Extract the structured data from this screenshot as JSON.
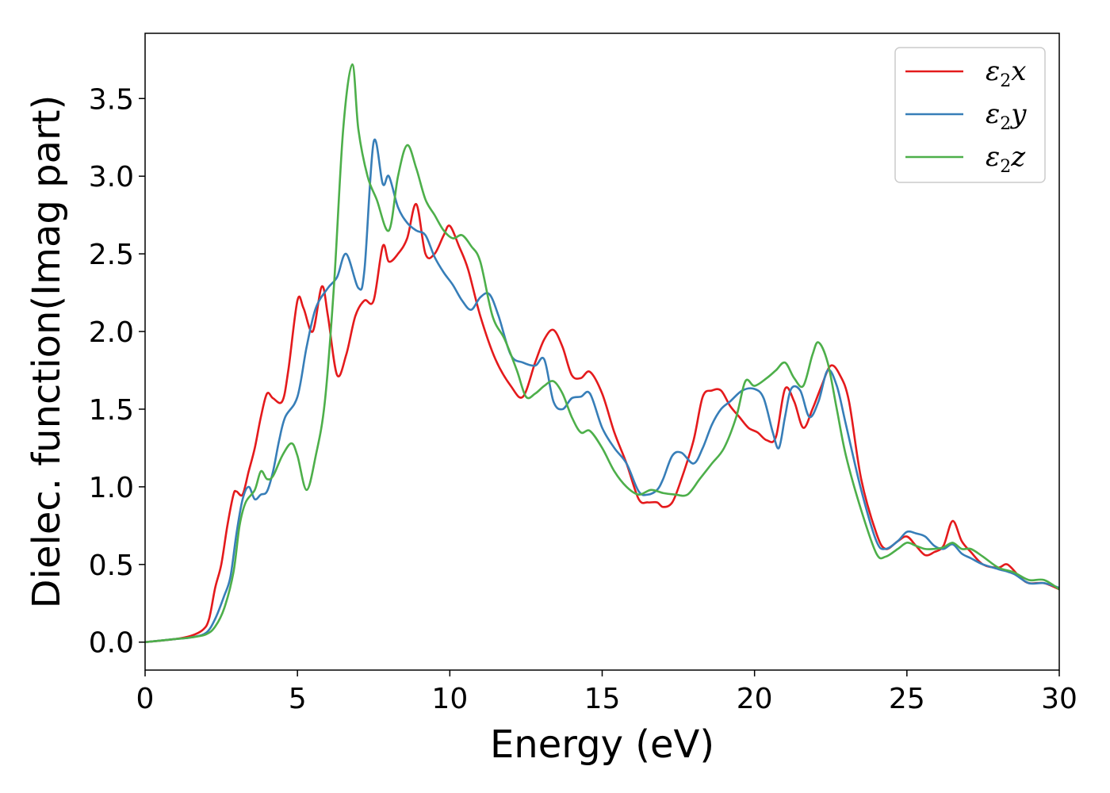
{
  "chart_data": {
    "type": "line",
    "title": "",
    "xlabel": "Energy (eV)",
    "ylabel": "Dielec. function(Imag part)",
    "xlim": [
      0,
      30
    ],
    "ylim": [
      -0.18,
      3.92
    ],
    "xticks": [
      0,
      5,
      10,
      15,
      20,
      25,
      30
    ],
    "yticks": [
      0.0,
      0.5,
      1.0,
      1.5,
      2.0,
      2.5,
      3.0,
      3.5
    ],
    "xtick_labels": [
      "0",
      "5",
      "10",
      "15",
      "20",
      "25",
      "30"
    ],
    "ytick_labels": [
      "0.0",
      "0.5",
      "1.0",
      "1.5",
      "2.0",
      "2.5",
      "3.0",
      "3.5"
    ],
    "grid": false,
    "legend_position": "top-right",
    "series": [
      {
        "name": "ε2x",
        "legend_main": "ε",
        "legend_sub": "2",
        "legend_tail": "x",
        "color": "#e41a1c",
        "x": [
          0,
          1,
          1.5,
          1.9,
          2.1,
          2.3,
          2.5,
          2.7,
          2.9,
          3.0,
          3.2,
          3.4,
          3.6,
          3.8,
          4.0,
          4.2,
          4.5,
          4.7,
          5.0,
          5.2,
          5.5,
          5.8,
          6.0,
          6.3,
          6.6,
          6.9,
          7.2,
          7.5,
          7.8,
          8.0,
          8.3,
          8.6,
          8.9,
          9.2,
          9.5,
          9.8,
          10.0,
          10.3,
          10.6,
          11.0,
          11.5,
          12.0,
          12.4,
          12.8,
          13.1,
          13.4,
          13.7,
          14.0,
          14.3,
          14.6,
          15.0,
          15.4,
          15.8,
          16.2,
          16.5,
          16.8,
          17.0,
          17.3,
          17.6,
          18.0,
          18.3,
          18.6,
          18.9,
          19.2,
          19.5,
          19.8,
          20.1,
          20.4,
          20.7,
          21.0,
          21.3,
          21.6,
          21.9,
          22.2,
          22.5,
          22.8,
          23.1,
          23.5,
          24.0,
          24.3,
          24.7,
          25.0,
          25.3,
          25.6,
          25.9,
          26.2,
          26.5,
          26.8,
          27.1,
          27.5,
          28.0,
          28.3,
          28.7,
          29.0,
          29.5,
          30.0
        ],
        "y": [
          0.0,
          0.02,
          0.04,
          0.08,
          0.15,
          0.35,
          0.5,
          0.75,
          0.95,
          0.97,
          0.95,
          1.1,
          1.25,
          1.45,
          1.6,
          1.57,
          1.55,
          1.75,
          2.2,
          2.15,
          2.0,
          2.29,
          2.1,
          1.72,
          1.85,
          2.1,
          2.2,
          2.2,
          2.55,
          2.45,
          2.5,
          2.6,
          2.82,
          2.5,
          2.5,
          2.62,
          2.68,
          2.55,
          2.4,
          2.1,
          1.82,
          1.65,
          1.58,
          1.8,
          1.95,
          2.01,
          1.9,
          1.72,
          1.7,
          1.74,
          1.6,
          1.35,
          1.15,
          0.92,
          0.9,
          0.9,
          0.87,
          0.9,
          1.05,
          1.3,
          1.58,
          1.62,
          1.62,
          1.52,
          1.45,
          1.38,
          1.35,
          1.3,
          1.32,
          1.63,
          1.55,
          1.38,
          1.5,
          1.65,
          1.78,
          1.72,
          1.55,
          1.05,
          0.7,
          0.6,
          0.65,
          0.68,
          0.62,
          0.56,
          0.58,
          0.62,
          0.78,
          0.65,
          0.58,
          0.5,
          0.48,
          0.5,
          0.42,
          0.38,
          0.38,
          0.34
        ]
      },
      {
        "name": "ε2y",
        "legend_main": "ε",
        "legend_sub": "2",
        "legend_tail": "y",
        "color": "#377eb8",
        "x": [
          0,
          1,
          1.5,
          2.0,
          2.3,
          2.6,
          2.8,
          3.0,
          3.2,
          3.4,
          3.6,
          3.8,
          4.0,
          4.2,
          4.4,
          4.6,
          5.0,
          5.3,
          5.6,
          6.0,
          6.3,
          6.6,
          7.0,
          7.2,
          7.5,
          7.8,
          8.0,
          8.3,
          8.6,
          8.9,
          9.2,
          9.5,
          9.8,
          10.1,
          10.4,
          10.7,
          11.0,
          11.3,
          11.6,
          12.0,
          12.4,
          12.8,
          13.1,
          13.4,
          13.7,
          14.0,
          14.3,
          14.6,
          15.0,
          15.4,
          15.8,
          16.2,
          16.5,
          16.8,
          17.0,
          17.3,
          17.6,
          18.0,
          18.3,
          18.6,
          18.9,
          19.2,
          19.6,
          20.0,
          20.3,
          20.6,
          20.8,
          21.0,
          21.2,
          21.5,
          21.8,
          22.1,
          22.4,
          22.7,
          23.0,
          23.5,
          24.0,
          24.3,
          24.7,
          25.0,
          25.3,
          25.6,
          25.9,
          26.2,
          26.5,
          26.8,
          27.1,
          27.5,
          28.0,
          28.5,
          29.0,
          29.5,
          30.0
        ],
        "y": [
          0.0,
          0.02,
          0.03,
          0.06,
          0.15,
          0.3,
          0.42,
          0.7,
          0.92,
          1.0,
          0.92,
          0.95,
          0.97,
          1.1,
          1.3,
          1.45,
          1.58,
          1.9,
          2.15,
          2.28,
          2.35,
          2.5,
          2.28,
          2.4,
          3.22,
          2.95,
          3.0,
          2.8,
          2.7,
          2.65,
          2.62,
          2.48,
          2.38,
          2.3,
          2.2,
          2.14,
          2.22,
          2.24,
          2.1,
          1.85,
          1.8,
          1.78,
          1.82,
          1.55,
          1.5,
          1.57,
          1.58,
          1.6,
          1.38,
          1.25,
          1.15,
          0.97,
          0.95,
          0.98,
          1.05,
          1.2,
          1.22,
          1.15,
          1.25,
          1.4,
          1.5,
          1.55,
          1.62,
          1.63,
          1.57,
          1.35,
          1.25,
          1.45,
          1.63,
          1.62,
          1.45,
          1.55,
          1.75,
          1.65,
          1.4,
          0.98,
          0.65,
          0.6,
          0.65,
          0.71,
          0.7,
          0.68,
          0.62,
          0.6,
          0.63,
          0.57,
          0.54,
          0.5,
          0.47,
          0.44,
          0.38,
          0.38,
          0.35
        ]
      },
      {
        "name": "ε2z",
        "legend_main": "ε",
        "legend_sub": "2",
        "legend_tail": "z",
        "color": "#4daf4a",
        "x": [
          0,
          1,
          1.5,
          2.0,
          2.3,
          2.6,
          2.9,
          3.1,
          3.3,
          3.6,
          3.8,
          4.0,
          4.2,
          4.5,
          4.8,
          5.0,
          5.3,
          5.6,
          5.9,
          6.2,
          6.5,
          6.8,
          7.0,
          7.3,
          7.6,
          8.0,
          8.3,
          8.6,
          8.9,
          9.2,
          9.5,
          9.8,
          10.1,
          10.4,
          10.7,
          11.0,
          11.4,
          11.8,
          12.2,
          12.5,
          12.8,
          13.1,
          13.4,
          13.7,
          14.0,
          14.3,
          14.6,
          15.0,
          15.4,
          15.8,
          16.2,
          16.6,
          17.0,
          17.4,
          17.8,
          18.2,
          18.6,
          19.0,
          19.4,
          19.7,
          20.0,
          20.4,
          20.7,
          21.0,
          21.3,
          21.6,
          21.9,
          22.1,
          22.4,
          22.7,
          23.0,
          23.5,
          24.0,
          24.3,
          24.7,
          25.0,
          25.3,
          25.6,
          25.9,
          26.2,
          26.5,
          26.8,
          27.1,
          27.5,
          28.0,
          28.5,
          29.0,
          29.5,
          30.0
        ],
        "y": [
          0.0,
          0.02,
          0.03,
          0.05,
          0.1,
          0.22,
          0.45,
          0.75,
          0.9,
          0.98,
          1.1,
          1.05,
          1.07,
          1.2,
          1.28,
          1.2,
          0.98,
          1.2,
          1.55,
          2.3,
          3.3,
          3.72,
          3.3,
          3.0,
          2.85,
          2.65,
          3.0,
          3.2,
          3.05,
          2.85,
          2.75,
          2.65,
          2.6,
          2.62,
          2.55,
          2.45,
          2.1,
          1.95,
          1.75,
          1.58,
          1.6,
          1.65,
          1.68,
          1.6,
          1.45,
          1.35,
          1.36,
          1.25,
          1.1,
          1.0,
          0.95,
          0.98,
          0.96,
          0.95,
          0.95,
          1.05,
          1.15,
          1.25,
          1.45,
          1.68,
          1.65,
          1.7,
          1.75,
          1.8,
          1.7,
          1.65,
          1.85,
          1.93,
          1.8,
          1.5,
          1.2,
          0.85,
          0.57,
          0.55,
          0.6,
          0.64,
          0.62,
          0.6,
          0.6,
          0.61,
          0.64,
          0.6,
          0.6,
          0.55,
          0.48,
          0.45,
          0.4,
          0.4,
          0.34
        ]
      }
    ]
  }
}
